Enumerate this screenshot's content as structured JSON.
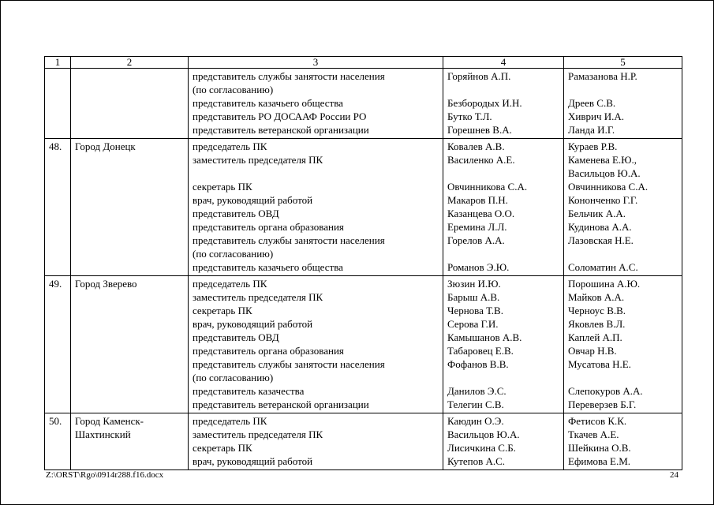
{
  "document": {
    "footer": {
      "path": "Z:\\ORST\\Rgo\\0914r288.f16.docx",
      "page_number": "24"
    },
    "table": {
      "headers": [
        "1",
        "2",
        "3",
        "4",
        "5"
      ],
      "rows": [
        {
          "num": "",
          "city": [],
          "positions": [
            "представитель службы занятости населения",
            "(по согласованию)",
            "представитель казачьего общества",
            "представитель РО ДОСААФ России РО",
            "представитель ветеранской организации"
          ],
          "names_a": [
            "Горяйнов А.П.",
            "",
            "Безбородых И.Н.",
            "Бутко Т.Л.",
            "Горешнев В.А."
          ],
          "names_b": [
            "Рамазанова Н.Р.",
            "",
            "Дреев С.В.",
            "Хиврич И.А.",
            "Ланда И.Г."
          ]
        },
        {
          "num": "48.",
          "city": [
            "Город Донецк"
          ],
          "positions": [
            "председатель ПК",
            "заместитель председателя ПК",
            "",
            "секретарь ПК",
            "врач, руководящий работой",
            "представитель ОВД",
            "представитель органа образования",
            "представитель службы занятости населения",
            "(по согласованию)",
            "представитель казачьего общества"
          ],
          "names_a": [
            "Ковалев А.В.",
            "Василенко А.Е.",
            "",
            "Овчинникова С.А.",
            "Макаров П.Н.",
            "Казанцева О.О.",
            "Еремина Л.Л.",
            "Горелов А.А.",
            "",
            "Романов Э.Ю."
          ],
          "names_b": [
            "Кураев Р.В.",
            "Каменева Е.Ю.,",
            "Васильцов Ю.А.",
            "Овчинникова С.А.",
            "Кононченко Г.Г.",
            "Бельчик А.А.",
            "Кудинова А.А.",
            "Лазовская Н.Е.",
            "",
            "Соломатин А.С."
          ]
        },
        {
          "num": "49.",
          "city": [
            "Город Зверево"
          ],
          "positions": [
            "председатель ПК",
            "заместитель председателя ПК",
            "секретарь ПК",
            "врач, руководящий работой",
            "представитель ОВД",
            "представитель органа образования",
            "представитель службы занятости населения",
            "(по согласованию)",
            "представитель казачества",
            "представитель ветеранской организации"
          ],
          "names_a": [
            "Зюзин И.Ю.",
            "Барыш А.В.",
            "Чернова Т.В.",
            "Серова Г.И.",
            "Камышанов А.В.",
            "Табаровец Е.В.",
            "Фофанов В.В.",
            "",
            "Данилов Э.С.",
            "Телегин С.В."
          ],
          "names_b": [
            "Порошина А.Ю.",
            "Майков А.А.",
            "Черноус В.В.",
            "Яковлев В.Л.",
            "Каплей А.П.",
            "Овчар Н.В.",
            "Мусатова Н.Е.",
            "",
            "Слепокуров А.А.",
            "Переверзев Б.Г."
          ]
        },
        {
          "num": "50.",
          "city": [
            "Город Каменск-",
            "Шахтинский"
          ],
          "positions": [
            "председатель ПК",
            "заместитель председателя ПК",
            "секретарь ПК",
            "врач, руководящий работой"
          ],
          "names_a": [
            "Каюдин О.Э.",
            "Васильцов Ю.А.",
            "Лисичкина С.Б.",
            "Кутепов А.С."
          ],
          "names_b": [
            "Фетисов К.К.",
            "Ткачев А.Е.",
            "Шейкина О.В.",
            "Ефимова Е.М."
          ]
        }
      ]
    }
  }
}
